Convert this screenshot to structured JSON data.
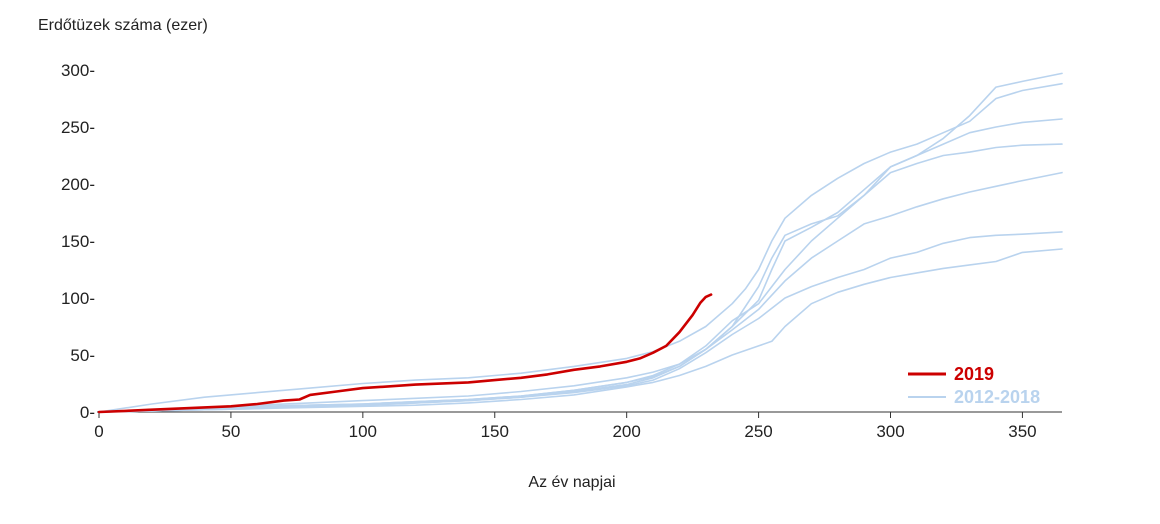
{
  "chart_data": {
    "type": "line",
    "title": "",
    "ylabel": "Erdőtüzek száma (ezer)",
    "xlabel": "Az év napjai",
    "xlim": [
      0,
      365
    ],
    "ylim": [
      0,
      300
    ],
    "x_ticks": [
      "0",
      "50",
      "100",
      "150",
      "200",
      "250",
      "300",
      "350"
    ],
    "y_ticks": [
      "0",
      "50",
      "100",
      "150",
      "200",
      "250",
      "300"
    ],
    "grid": false,
    "legend_position": "bottom-right",
    "legend": [
      {
        "label": "2019",
        "color": "#cc0000"
      },
      {
        "label": "2012-2018",
        "color": "#b9d3ee"
      }
    ],
    "series": [
      {
        "color": "#cc0000",
        "x": [
          0,
          10,
          20,
          30,
          40,
          50,
          60,
          70,
          76,
          80,
          90,
          100,
          120,
          140,
          150,
          160,
          170,
          180,
          190,
          200,
          205,
          210,
          215,
          220,
          225,
          228,
          230,
          232
        ],
        "y": [
          0,
          1,
          2,
          3,
          4,
          5,
          7,
          10,
          11,
          15,
          18,
          21,
          24,
          26,
          28,
          30,
          33,
          37,
          40,
          44,
          47,
          52,
          58,
          70,
          85,
          96,
          101,
          103
        ]
      },
      {
        "color": "#b9d3ee",
        "x": [
          0,
          20,
          40,
          60,
          80,
          100,
          120,
          140,
          160,
          180,
          200,
          210,
          220,
          230,
          240,
          245,
          250,
          255,
          260,
          270,
          280,
          290,
          300,
          310,
          320,
          330,
          340,
          350,
          365
        ],
        "y": [
          0,
          7,
          13,
          17,
          21,
          25,
          28,
          30,
          34,
          40,
          47,
          53,
          62,
          75,
          95,
          108,
          125,
          150,
          170,
          190,
          205,
          218,
          228,
          235,
          245,
          255,
          275,
          282,
          288
        ]
      },
      {
        "color": "#b9d3ee",
        "x": [
          0,
          20,
          40,
          60,
          80,
          100,
          120,
          140,
          160,
          180,
          200,
          210,
          220,
          230,
          240,
          250,
          255,
          260,
          270,
          280,
          290,
          300,
          310,
          320,
          330,
          340,
          350,
          365
        ],
        "y": [
          0,
          2,
          4,
          6,
          8,
          10,
          12,
          14,
          18,
          23,
          30,
          35,
          42,
          55,
          75,
          110,
          135,
          155,
          165,
          172,
          190,
          215,
          225,
          240,
          260,
          285,
          290,
          297
        ]
      },
      {
        "color": "#b9d3ee",
        "x": [
          0,
          20,
          40,
          60,
          80,
          100,
          120,
          140,
          160,
          180,
          200,
          210,
          220,
          230,
          240,
          250,
          255,
          260,
          270,
          280,
          290,
          300,
          310,
          320,
          330,
          340,
          350,
          365
        ],
        "y": [
          0,
          2,
          3,
          5,
          6,
          7,
          9,
          11,
          14,
          19,
          26,
          31,
          40,
          55,
          75,
          98,
          125,
          150,
          162,
          175,
          195,
          215,
          225,
          235,
          245,
          250,
          254,
          257
        ]
      },
      {
        "color": "#b9d3ee",
        "x": [
          0,
          20,
          40,
          60,
          80,
          100,
          120,
          140,
          160,
          180,
          200,
          210,
          220,
          230,
          240,
          250,
          260,
          270,
          280,
          290,
          300,
          310,
          320,
          330,
          340,
          350,
          365
        ],
        "y": [
          0,
          1,
          3,
          4,
          6,
          7,
          9,
          11,
          14,
          19,
          26,
          32,
          42,
          58,
          80,
          95,
          125,
          150,
          170,
          190,
          210,
          218,
          225,
          228,
          232,
          234,
          235
        ]
      },
      {
        "color": "#b9d3ee",
        "x": [
          0,
          20,
          40,
          60,
          80,
          100,
          120,
          140,
          160,
          180,
          200,
          210,
          220,
          230,
          240,
          250,
          260,
          270,
          280,
          290,
          300,
          310,
          320,
          330,
          340,
          350,
          365
        ],
        "y": [
          0,
          1,
          2,
          4,
          5,
          6,
          8,
          10,
          13,
          18,
          24,
          30,
          40,
          55,
          72,
          90,
          115,
          135,
          150,
          165,
          172,
          180,
          187,
          193,
          198,
          203,
          210
        ]
      },
      {
        "color": "#b9d3ee",
        "x": [
          0,
          20,
          40,
          60,
          80,
          100,
          120,
          140,
          160,
          180,
          200,
          210,
          220,
          230,
          240,
          250,
          260,
          270,
          280,
          290,
          300,
          310,
          320,
          330,
          340,
          350,
          365
        ],
        "y": [
          0,
          1,
          2,
          3,
          5,
          6,
          8,
          10,
          13,
          17,
          23,
          28,
          38,
          52,
          68,
          82,
          100,
          110,
          118,
          125,
          135,
          140,
          148,
          153,
          155,
          156,
          158
        ]
      },
      {
        "color": "#b9d3ee",
        "x": [
          0,
          20,
          40,
          60,
          80,
          100,
          120,
          140,
          160,
          180,
          200,
          210,
          220,
          230,
          240,
          250,
          255,
          260,
          270,
          280,
          290,
          300,
          310,
          320,
          330,
          340,
          350,
          365
        ],
        "y": [
          0,
          1,
          2,
          3,
          4,
          5,
          6,
          8,
          11,
          15,
          22,
          26,
          32,
          40,
          50,
          58,
          62,
          75,
          95,
          105,
          112,
          118,
          122,
          126,
          129,
          132,
          140,
          143
        ]
      }
    ]
  }
}
